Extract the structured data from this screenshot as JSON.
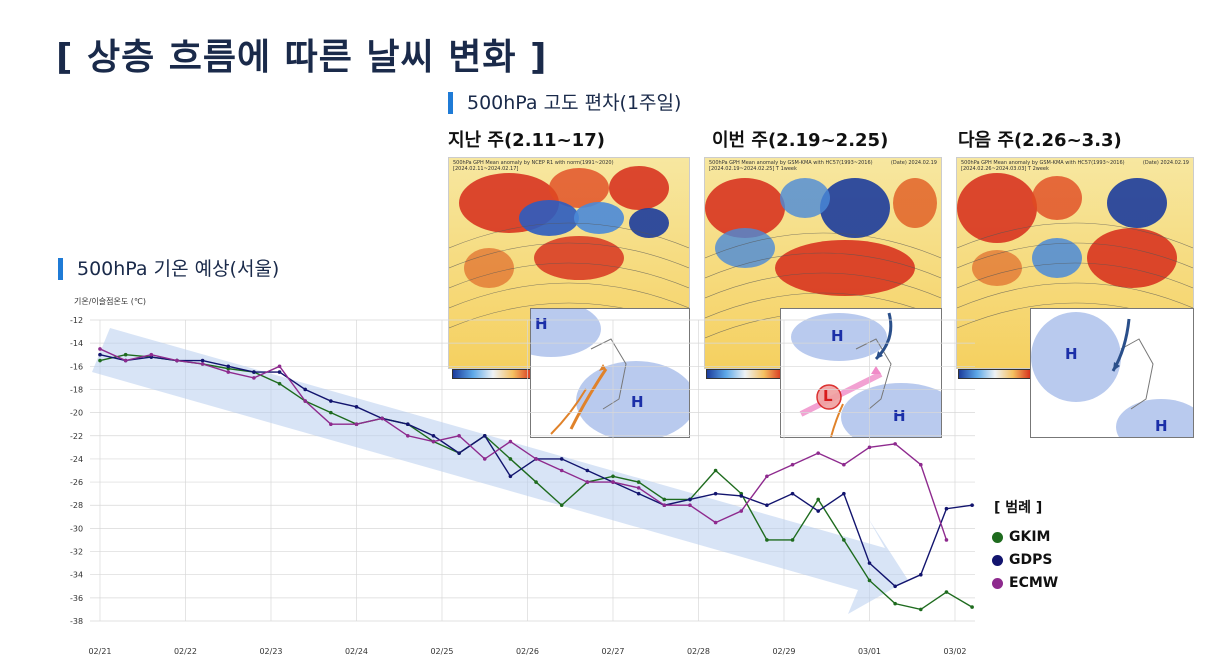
{
  "page_title": "[ 상층 흐름에 따른 날씨 변화 ]",
  "map_section": {
    "title": "500hPa 고도 편차(1주일)",
    "panels": [
      {
        "label": "지난 주(2.11~17)",
        "header": "500hPa GPH Mean anomaly by NCEP R1 with norm(1991~2020)\n[2024.02.11~2024.02.17]",
        "date": "",
        "highs": [
          "H",
          "H"
        ],
        "lows": []
      },
      {
        "label": "이번 주(2.19~2.25)",
        "header": "500hPa GPH Mean anomaly by GSM-KMA with HC57(1993~2016)\n[2024.02.19~2024.02.25] T 1week",
        "date": "(Date) 2024.02.19",
        "highs": [
          "H",
          "H"
        ],
        "lows": [
          "L"
        ]
      },
      {
        "label": "다음 주(2.26~3.3)",
        "header": "500hPa GPH Mean anomaly by GSM-KMA with HC57(1993~2016)\n[2024.02.26~2024.03.03] T 2week",
        "date": "(Date) 2024.02.19",
        "highs": [
          "H",
          "H"
        ],
        "lows": []
      }
    ],
    "colors": {
      "warm": "#d62a1a",
      "cold": "#1c3c9c"
    }
  },
  "chart_section": {
    "title": "500hPa 기온 예상(서울)"
  },
  "chart_data": {
    "type": "line",
    "ylabel": "기온/이슬점온도 (℃)",
    "ylim": [
      -38,
      -12
    ],
    "yticks": [
      -12,
      -14,
      -16,
      -18,
      -20,
      -22,
      -24,
      -26,
      -28,
      -30,
      -32,
      -34,
      -36,
      -38
    ],
    "xlim": [
      0,
      10.3
    ],
    "xticks": [
      "02/21",
      "02/22",
      "02/23",
      "02/24",
      "02/25",
      "02/26",
      "02/27",
      "02/28",
      "02/29",
      "03/01",
      "03/02"
    ],
    "grid": true,
    "legend": {
      "title": "[ 범례 ]",
      "placement": "right"
    },
    "series": [
      {
        "name": "GKIM",
        "color": "#1e6b1e",
        "x": [
          0,
          0.3,
          0.6,
          0.9,
          1.2,
          1.5,
          1.8,
          2.1,
          2.4,
          2.7,
          3.0,
          3.3,
          3.6,
          3.9,
          4.2,
          4.5,
          4.8,
          5.1,
          5.4,
          5.7,
          6.0,
          6.3,
          6.6,
          6.9,
          7.2,
          7.5,
          7.8,
          8.1,
          8.4,
          8.7,
          9.0,
          9.3,
          9.6,
          9.9,
          10.2
        ],
        "y": [
          -15.5,
          -15,
          -15.2,
          -15.5,
          -15.8,
          -16.2,
          -16.5,
          -17.5,
          -19,
          -20,
          -21,
          -20.5,
          -21,
          -22.5,
          -23.5,
          -22,
          -24,
          -26,
          -28,
          -26,
          -25.5,
          -26,
          -27.5,
          -27.5,
          -25,
          -27,
          -31,
          -31,
          -27.5,
          -31,
          -34.5,
          -36.5,
          -37,
          -35.5,
          -36.8
        ]
      },
      {
        "name": "GDPS",
        "color": "#12146e",
        "x": [
          0,
          0.3,
          0.6,
          0.9,
          1.2,
          1.5,
          1.8,
          2.1,
          2.4,
          2.7,
          3.0,
          3.3,
          3.6,
          3.9,
          4.2,
          4.5,
          4.8,
          5.1,
          5.4,
          5.7,
          6.0,
          6.3,
          6.6,
          6.9,
          7.2,
          7.5,
          7.8,
          8.1,
          8.4,
          8.7,
          9.0,
          9.3,
          9.6,
          9.9,
          10.2
        ],
        "y": [
          -15,
          -15.5,
          -15.2,
          -15.5,
          -15.5,
          -16,
          -16.5,
          -16.5,
          -18,
          -19,
          -19.5,
          -20.5,
          -21,
          -22,
          -23.5,
          -22,
          -25.5,
          -24,
          -24,
          -25,
          -26,
          -27,
          -28,
          -27.5,
          -27,
          -27.2,
          -28,
          -27,
          -28.5,
          -27,
          -33,
          -35,
          -34,
          -28.3,
          -28
        ]
      },
      {
        "name": "ECMW",
        "color": "#8e2a8e",
        "x": [
          0,
          0.3,
          0.6,
          0.9,
          1.2,
          1.5,
          1.8,
          2.1,
          2.4,
          2.7,
          3.0,
          3.3,
          3.6,
          3.9,
          4.2,
          4.5,
          4.8,
          5.1,
          5.4,
          5.7,
          6.0,
          6.3,
          6.6,
          6.9,
          7.2,
          7.5,
          7.8,
          8.1,
          8.4,
          8.7,
          9.0,
          9.3,
          9.6,
          9.9
        ],
        "y": [
          -14.5,
          -15.5,
          -15,
          -15.5,
          -15.8,
          -16.5,
          -17,
          -16,
          -19,
          -21,
          -21,
          -20.5,
          -22,
          -22.5,
          -22,
          -24,
          -22.5,
          -24,
          -25,
          -26,
          -26,
          -26.5,
          -28,
          -28,
          -29.5,
          -28.5,
          -25.5,
          -24.5,
          -23.5,
          -24.5,
          -23,
          -22.7,
          -24.5,
          -31
        ]
      }
    ]
  }
}
